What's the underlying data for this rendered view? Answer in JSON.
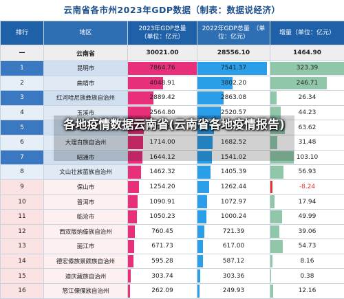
{
  "title": "云南省各市州2023年GDP数据（制表：数据说经济）",
  "headers": {
    "rank": "排行",
    "region": "地区",
    "gdp2023": "2023年GDP总量\n（单位：亿元）",
    "gdp2022": "2022年GDP总量　（单\n位：亿元）",
    "increase": "增量（单位：亿元）"
  },
  "total": {
    "rank": "—",
    "region": "云南省",
    "gdp2023": "30021.00",
    "gdp2022": "28556.10",
    "increase": "1464.90"
  },
  "rows": [
    {
      "rank": "1",
      "region": "昆明市",
      "gdp2023": "7864.76",
      "gdp2022": "7541.37",
      "increase": "323.39",
      "v23": 7864.76,
      "v22": 7541.37,
      "vinc": 323.39
    },
    {
      "rank": "2",
      "region": "曲靖市",
      "gdp2023": "4048.91",
      "gdp2022": "3802.20",
      "increase": "246.71",
      "v23": 4048.91,
      "v22": 3802.2,
      "vinc": 246.71
    },
    {
      "rank": "3",
      "region": "红河哈尼族彝族自治州",
      "gdp2023": "2889.42",
      "gdp2022": "2863.08",
      "increase": "26.34",
      "v23": 2889.42,
      "v22": 2863.08,
      "vinc": 26.34
    },
    {
      "rank": "4",
      "region": "玉溪市",
      "gdp2023": "2564.80",
      "gdp2022": "2520.57",
      "increase": "44.23",
      "v23": 2564.8,
      "v22": 2520.57,
      "vinc": 44.23
    },
    {
      "rank": "5",
      "region": "楚雄彝族自治州",
      "gdp2023": "1827.04",
      "gdp2022": "1763.42",
      "increase": "63.62",
      "v23": 1827.04,
      "v22": 1763.42,
      "vinc": 63.62
    },
    {
      "rank": "6",
      "region": "大理白族自治州",
      "gdp2023": "1714.00",
      "gdp2022": "1682.52",
      "increase": "31.48",
      "v23": 1714.0,
      "v22": 1682.52,
      "vinc": 31.48
    },
    {
      "rank": "7",
      "region": "昭通市",
      "gdp2023": "1644.12",
      "gdp2022": "1541.02",
      "increase": "103.10",
      "v23": 1644.12,
      "v22": 1541.02,
      "vinc": 103.1
    },
    {
      "rank": "8",
      "region": "文山壮族苗族自治州",
      "gdp2023": "1462.32",
      "gdp2022": "1405.39",
      "increase": "56.93",
      "v23": 1462.32,
      "v22": 1405.39,
      "vinc": 56.93
    },
    {
      "rank": "9",
      "region": "保山市",
      "gdp2023": "1254.20",
      "gdp2022": "1262.44",
      "increase": "-8.24",
      "v23": 1254.2,
      "v22": 1262.44,
      "vinc": -8.24
    },
    {
      "rank": "10",
      "region": "普洱市",
      "gdp2023": "1090.91",
      "gdp2022": "1072.97",
      "increase": "17.94",
      "v23": 1090.91,
      "v22": 1072.97,
      "vinc": 17.94
    },
    {
      "rank": "11",
      "region": "临沧市",
      "gdp2023": "1050.23",
      "gdp2022": "1000.24",
      "increase": "49.99",
      "v23": 1050.23,
      "v22": 1000.24,
      "vinc": 49.99
    },
    {
      "rank": "12",
      "region": "西双版纳傣族自治州",
      "gdp2023": "760.45",
      "gdp2022": "721.39",
      "increase": "39.06",
      "v23": 760.45,
      "v22": 721.39,
      "vinc": 39.06
    },
    {
      "rank": "13",
      "region": "丽江市",
      "gdp2023": "671.73",
      "gdp2022": "617.00",
      "increase": "54.73",
      "v23": 671.73,
      "v22": 617.0,
      "vinc": 54.73
    },
    {
      "rank": "14",
      "region": "德宏傣族景颇族自治州",
      "gdp2023": "595.28",
      "gdp2022": "587.12",
      "increase": "8.16",
      "v23": 595.28,
      "v22": 587.12,
      "vinc": 8.16
    },
    {
      "rank": "15",
      "region": "迪庆藏族自治州",
      "gdp2023": "303.74",
      "gdp2022": "303.36",
      "increase": "0.38",
      "v23": 303.74,
      "v22": 303.36,
      "vinc": 0.38
    },
    {
      "rank": "16",
      "region": "怒江傈僳族自治州",
      "gdp2023": "262.09",
      "gdp2022": "249.93",
      "increase": "12.16",
      "v23": 262.09,
      "v22": 249.93,
      "vinc": 12.16
    }
  ],
  "overlay_caption": "各地疫情数据云南省(云南省各地疫情报告)",
  "colors": {
    "gdp2023_bar": "#e8307a",
    "gdp2022_bar": "#2a9ee8",
    "increase_bar": "#8fc7a8",
    "decrease_bar": "#e23030",
    "header_bg": "#1f61a8"
  }
}
